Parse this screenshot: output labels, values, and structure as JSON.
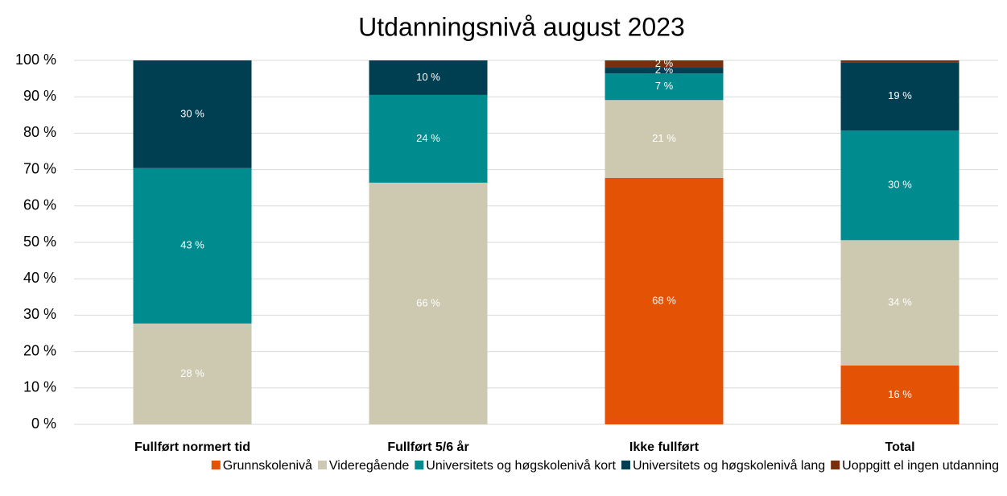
{
  "chart_data": {
    "type": "stacked_bar",
    "title": "Utdanningsnivå august 2023",
    "categories": [
      "Fullført normert tid",
      "Fullført 5/6 år",
      "Ikke fullført",
      "Total"
    ],
    "series": [
      {
        "name": "Grunnskolenivå",
        "color": "#e35205",
        "values": [
          0,
          0,
          67.7,
          16.2
        ],
        "value_labels": [
          null,
          null,
          "68 %",
          "16 %"
        ]
      },
      {
        "name": "Videregående",
        "color": "#ccc9b0",
        "values": [
          27.7,
          66.4,
          21.4,
          34.4
        ],
        "value_labels": [
          "28 %",
          "66 %",
          "21 %",
          "34 %"
        ]
      },
      {
        "name": "Universitets og høgskolenivå kort",
        "color": "#008b8f",
        "values": [
          42.7,
          24.1,
          7.3,
          30.1
        ],
        "value_labels": [
          "43 %",
          "24 %",
          "7 %",
          "30 %"
        ]
      },
      {
        "name": "Universitets og høgskolenivå lang",
        "color": "#003f51",
        "values": [
          29.6,
          9.5,
          1.6,
          18.8
        ],
        "value_labels": [
          "30 %",
          "10 %",
          "2 %",
          "19 %"
        ]
      },
      {
        "name": "Uoppgitt el ingen utdanning",
        "color": "#7a2e0e",
        "values": [
          0,
          0,
          2.0,
          0.5
        ],
        "value_labels": [
          null,
          null,
          "2 %",
          null
        ]
      }
    ],
    "ylim": [
      0,
      100
    ],
    "yticks": [
      {
        "value": 0,
        "label": "0 %"
      },
      {
        "value": 10,
        "label": "10 %"
      },
      {
        "value": 20,
        "label": "20 %"
      },
      {
        "value": 30,
        "label": "30 %"
      },
      {
        "value": 40,
        "label": "40 %"
      },
      {
        "value": 50,
        "label": "50 %"
      },
      {
        "value": 60,
        "label": "60 %"
      },
      {
        "value": 70,
        "label": "70 %"
      },
      {
        "value": 80,
        "label": "80 %"
      },
      {
        "value": 90,
        "label": "90 %"
      },
      {
        "value": 100,
        "label": "100 %"
      }
    ],
    "grid": true,
    "legend": "bottom"
  }
}
